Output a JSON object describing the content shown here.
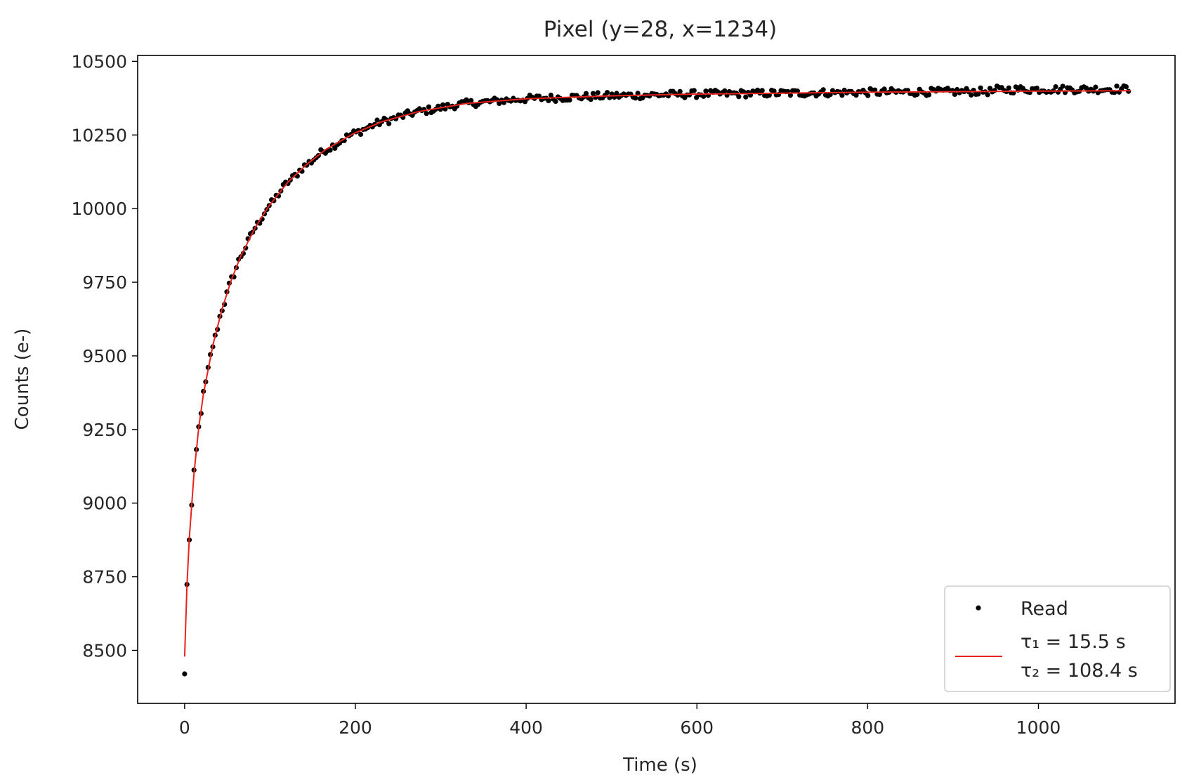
{
  "chart_data": {
    "type": "scatter",
    "title": "Pixel (y=28, x=1234)",
    "xlabel": "Time (s)",
    "ylabel": "Counts (e-)",
    "xlim": [
      -55,
      1160
    ],
    "ylim": [
      8320,
      10520
    ],
    "xticks": [
      0,
      200,
      400,
      600,
      800,
      1000
    ],
    "yticks": [
      8500,
      8750,
      9000,
      9250,
      9500,
      9750,
      10000,
      10250,
      10500
    ],
    "grid": false,
    "legend_position": "lower right",
    "series": [
      {
        "name": "Read",
        "kind": "points",
        "color": "#000000",
        "x_start": 0,
        "x_step": 2.75,
        "count": 403,
        "first_point": [
          0,
          8420
        ],
        "model": "exponential rise: A - B1*exp(-t/τ1) - B2*exp(-t/τ2)",
        "y_plateau": 10405,
        "noise_pp": 25
      },
      {
        "name_lines": [
          "τ₁ = 15.5 s",
          "τ₂ = 108.4 s"
        ],
        "kind": "fit",
        "color": "#e8221c",
        "tau1": 15.5,
        "tau2": 108.4,
        "x": [
          0,
          2.75,
          5.5,
          11,
          16.5,
          22,
          33,
          44,
          55,
          66,
          82.5,
          99,
          121,
          143,
          165,
          198,
          231,
          275,
          330,
          400,
          500,
          600,
          700,
          800,
          900,
          1000,
          1108
        ],
        "y": [
          8479,
          8720,
          8880,
          9100,
          9255,
          9370,
          9535,
          9660,
          9760,
          9840,
          9935,
          10010,
          10090,
          10150,
          10200,
          10255,
          10295,
          10330,
          10357,
          10373,
          10383,
          10389,
          10392,
          10395,
          10397,
          10399,
          10400
        ]
      }
    ]
  }
}
